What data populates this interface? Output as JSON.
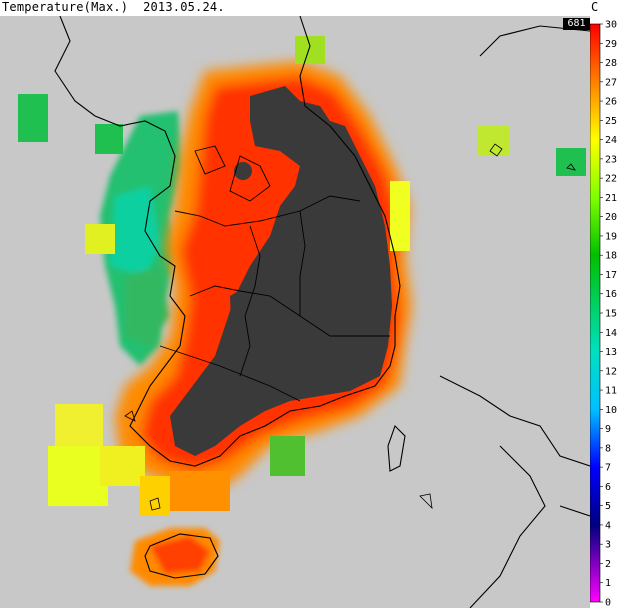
{
  "header": {
    "title": "Temperature(Max.)  2013.05.24.",
    "unit": "C",
    "station_count": "681"
  },
  "colorbar": {
    "ticks": [
      "30",
      "29",
      "28",
      "27",
      "26",
      "25",
      "24",
      "23",
      "22",
      "21",
      "20",
      "19",
      "18",
      "17",
      "16",
      "15",
      "14",
      "13",
      "12",
      "11",
      "10",
      "9",
      "8",
      "7",
      "6",
      "5",
      "4",
      "3",
      "2",
      "1",
      "0"
    ],
    "stops": [
      {
        "v": 30,
        "c": "#ff0000"
      },
      {
        "v": 27,
        "c": "#ff8000"
      },
      {
        "v": 24,
        "c": "#ffff00"
      },
      {
        "v": 21,
        "c": "#80ff00"
      },
      {
        "v": 18,
        "c": "#00c000"
      },
      {
        "v": 13,
        "c": "#00e0c0"
      },
      {
        "v": 10,
        "c": "#00c0ff"
      },
      {
        "v": 7,
        "c": "#0000ff"
      },
      {
        "v": 4,
        "c": "#000080"
      },
      {
        "v": 0,
        "c": "#ff00ff"
      }
    ]
  },
  "map": {
    "background": "#c8c8c8",
    "hot_color": "#3a3a3a",
    "outline_color": "#000000"
  }
}
